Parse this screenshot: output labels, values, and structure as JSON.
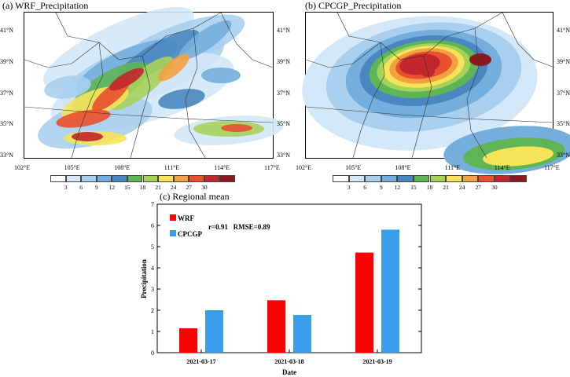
{
  "panels": {
    "a": {
      "title": "(a) WRF_Precipitation",
      "lat_labels": [
        "41°N",
        "39°N",
        "37°N",
        "35°N",
        "33°N"
      ],
      "lon_labels": [
        "102°E",
        "105°E",
        "108°E",
        "111°E",
        "114°E",
        "117°E"
      ]
    },
    "b": {
      "title": "(b) CPCGP_Precipitation",
      "lat_labels": [
        "41°N",
        "39°N",
        "37°N",
        "35°N",
        "33°N"
      ],
      "lon_labels": [
        "102°E",
        "105°E",
        "108°E",
        "111°E",
        "114°E",
        "117°E"
      ]
    }
  },
  "colorbar": {
    "levels": [
      "3",
      "6",
      "9",
      "12",
      "15",
      "18",
      "21",
      "24",
      "27",
      "30"
    ],
    "colors": [
      "#ffffff",
      "#d3e8f8",
      "#a9cfee",
      "#74aedc",
      "#4a87c0",
      "#5fb556",
      "#a6d25a",
      "#f7e35a",
      "#f3a140",
      "#e8502e",
      "#c3262c",
      "#8a1a1e"
    ]
  },
  "chart_data": {
    "type": "bar",
    "title": "(c) Regional mean",
    "xlabel": "Date",
    "ylabel": "Precipitation",
    "categories": [
      "2021-03-17",
      "2021-03-18",
      "2021-03-19"
    ],
    "series": [
      {
        "name": "WRF",
        "values": [
          1.15,
          2.47,
          4.72
        ],
        "color": "#ff0000"
      },
      {
        "name": "CPCGP",
        "values": [
          2.0,
          1.78,
          5.8
        ],
        "color": "#3a9ee8"
      }
    ],
    "ylim": [
      0,
      7
    ],
    "yticks": [
      "0",
      "1",
      "2",
      "3",
      "4",
      "5",
      "6",
      "7"
    ],
    "annotation": "r=0.91   RMSE=0.89",
    "legend_placement": "top-left",
    "grid": false
  }
}
